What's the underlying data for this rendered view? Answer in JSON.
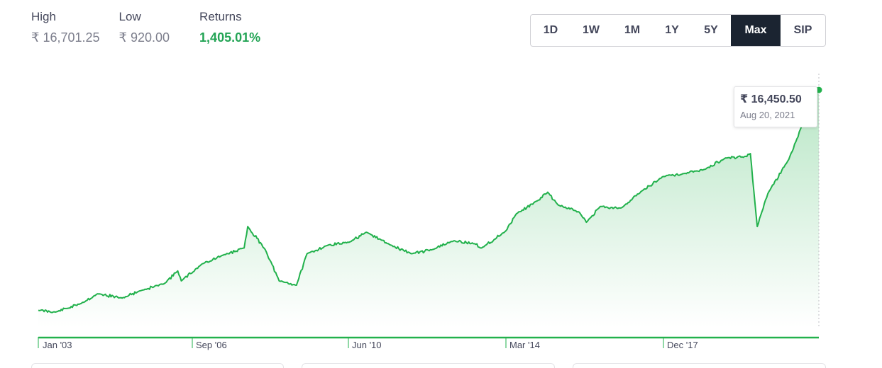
{
  "stats": {
    "high_label": "High",
    "high_value": "₹ 16,701.25",
    "low_label": "Low",
    "low_value": "₹ 920.00",
    "returns_label": "Returns",
    "returns_value": "1,405.01%"
  },
  "ranges": [
    "1D",
    "1W",
    "1M",
    "1Y",
    "5Y",
    "Max",
    "SIP"
  ],
  "active_range": "Max",
  "tooltip": {
    "value": "₹ 16,450.50",
    "date": "Aug 20, 2021"
  },
  "colors": {
    "line": "#22b14c",
    "active_button": "#1b2431",
    "returns": "#23a455"
  },
  "chart_data": {
    "type": "area",
    "x_tick_labels": [
      "Jan '03",
      "Sep '06",
      "Jun '10",
      "Mar '14",
      "Dec '17"
    ],
    "ylim": [
      920,
      16701.25
    ],
    "grid": false,
    "series": [
      {
        "x": [
          "2003-01",
          "2003-06",
          "2004-01",
          "2004-06",
          "2005-01",
          "2005-06",
          "2006-01",
          "2006-05",
          "2006-06",
          "2006-12",
          "2007-06",
          "2007-12",
          "2008-01",
          "2008-06",
          "2008-10",
          "2009-03",
          "2009-06",
          "2009-12",
          "2010-06",
          "2010-11",
          "2011-06",
          "2011-12",
          "2012-06",
          "2012-12",
          "2013-06",
          "2013-08",
          "2014-03",
          "2014-06",
          "2014-12",
          "2015-03",
          "2015-06",
          "2015-12",
          "2016-02",
          "2016-06",
          "2016-12",
          "2017-06",
          "2017-12",
          "2018-06",
          "2018-12",
          "2019-06",
          "2019-12",
          "2020-01",
          "2020-03",
          "2020-06",
          "2020-12",
          "2021-06",
          "2021-08"
        ],
        "values": [
          1050,
          920,
          1500,
          2200,
          1900,
          2400,
          2900,
          3800,
          3100,
          4300,
          4900,
          5400,
          6900,
          5300,
          3100,
          2800,
          5000,
          5600,
          5800,
          6500,
          5600,
          5000,
          5300,
          5900,
          5700,
          5400,
          6600,
          7800,
          8700,
          9300,
          8400,
          7900,
          7200,
          8300,
          8200,
          9400,
          10400,
          10600,
          10900,
          11700,
          11800,
          12000,
          6900,
          9200,
          11600,
          15300,
          16450.5
        ]
      }
    ]
  }
}
